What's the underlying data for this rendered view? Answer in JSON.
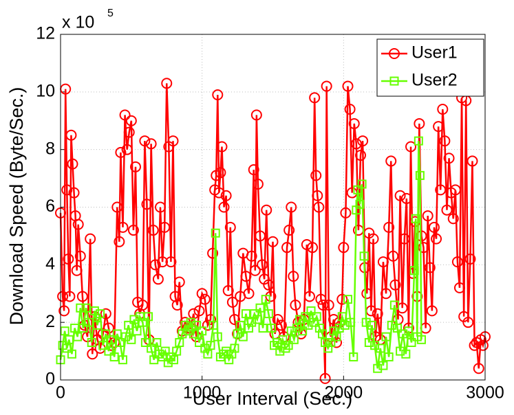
{
  "chart_data": {
    "type": "line",
    "xlabel": "User Interval (Sec.)",
    "ylabel": "Download Speed (Byte/Sec.)",
    "y_multiplier": {
      "base": "x 10",
      "exponent": "5"
    },
    "xlim": [
      0,
      3000
    ],
    "xticks": [
      0,
      1000,
      2000,
      3000
    ],
    "ylim": [
      0,
      12
    ],
    "yticks": [
      0,
      2,
      4,
      6,
      8,
      10,
      12
    ],
    "grid": true,
    "legend": "top-right",
    "series": [
      {
        "name": "User1",
        "color": "#ff0000",
        "marker": "circle",
        "x": [
          0,
          15,
          25,
          35,
          45,
          55,
          65,
          75,
          85,
          95,
          105,
          115,
          125,
          140,
          155,
          170,
          190,
          210,
          225,
          240,
          260,
          280,
          300,
          320,
          340,
          360,
          380,
          400,
          415,
          425,
          440,
          455,
          470,
          485,
          500,
          515,
          530,
          545,
          560,
          580,
          595,
          610,
          625,
          640,
          655,
          670,
          690,
          705,
          720,
          735,
          750,
          765,
          780,
          795,
          810,
          825,
          840,
          860,
          880,
          900,
          920,
          940,
          960,
          980,
          1000,
          1020,
          1040,
          1060,
          1075,
          1090,
          1100,
          1110,
          1120,
          1130,
          1140,
          1155,
          1170,
          1185,
          1200,
          1215,
          1230,
          1250,
          1270,
          1290,
          1310,
          1330,
          1350,
          1365,
          1375,
          1385,
          1395,
          1410,
          1425,
          1440,
          1455,
          1470,
          1485,
          1500,
          1515,
          1535,
          1560,
          1580,
          1600,
          1615,
          1630,
          1645,
          1660,
          1680,
          1700,
          1720,
          1740,
          1760,
          1780,
          1795,
          1805,
          1815,
          1825,
          1840,
          1855,
          1870,
          1880,
          1895,
          1910,
          1930,
          1950,
          1970,
          1990,
          2000,
          2015,
          2030,
          2045,
          2060,
          2075,
          2090,
          2105,
          2120,
          2135,
          2150,
          2165,
          2180,
          2195,
          2210,
          2225,
          2240,
          2260,
          2280,
          2300,
          2320,
          2335,
          2350,
          2365,
          2385,
          2400,
          2415,
          2430,
          2445,
          2460,
          2475,
          2490,
          2505,
          2520,
          2535,
          2550,
          2565,
          2580,
          2595,
          2610,
          2625,
          2640,
          2655,
          2670,
          2685,
          2700,
          2715,
          2730,
          2745,
          2760,
          2775,
          2790,
          2805,
          2820,
          2835,
          2850,
          2865,
          2880,
          2895,
          2910,
          2925,
          2940,
          2955,
          2970,
          2985,
          3000
        ],
        "values": [
          5.8,
          2.9,
          2.4,
          10.1,
          6.6,
          4.2,
          2.9,
          8.5,
          7.5,
          6.5,
          5.7,
          3.8,
          5.4,
          4.3,
          2.9,
          1.9,
          1.5,
          4.9,
          0.9,
          2.2,
          1.4,
          1.1,
          1.6,
          2.3,
          1.8,
          1.2,
          1.3,
          6.0,
          4.8,
          7.9,
          5.3,
          9.2,
          8.0,
          8.6,
          9.0,
          5.2,
          7.4,
          2.7,
          2.3,
          2.6,
          8.3,
          6.1,
          1.4,
          8.2,
          5.2,
          4.0,
          3.5,
          6.0,
          4.1,
          5.3,
          10.3,
          8.1,
          4.1,
          8.3,
          2.9,
          2.6,
          3.4,
          1.7,
          2.0,
          1.8,
          1.8,
          2.3,
          1.5,
          2.4,
          3.0,
          2.8,
          1.9,
          2.1,
          4.4,
          6.6,
          7.1,
          9.9,
          6.5,
          7.2,
          8.1,
          6.0,
          6.4,
          3.1,
          5.3,
          2.7,
          2.1,
          1.6,
          2.9,
          4.4,
          3.6,
          3.0,
          4.3,
          7.3,
          3.8,
          9.2,
          6.8,
          5.0,
          4.0,
          3.5,
          5.9,
          3.3,
          2.9,
          4.8,
          1.6,
          2.1,
          1.9,
          1.5,
          4.6,
          5.2,
          6.0,
          3.6,
          2.6,
          2.0,
          1.6,
          2.1,
          4.7,
          2.9,
          4.6,
          9.8,
          7.1,
          6.4,
          6.0,
          2.8,
          2.6,
          0.05,
          10.2,
          2.6,
          1.5,
          2.1,
          1.3,
          2.0,
          2.8,
          4.6,
          5.8,
          10.2,
          9.4,
          6.5,
          8.9,
          8.2,
          5.2,
          7.8,
          8.3,
          3.9,
          3.0,
          5.1,
          2.4,
          4.9,
          1.5,
          2.3,
          1.4,
          4.1,
          3.0,
          5.3,
          7.6,
          4.3,
          3.3,
          2.1,
          6.4,
          2.5,
          4.9,
          6.3,
          1.8,
          8.1,
          3.7,
          5.5,
          2.9,
          8.9,
          5.0,
          4.6,
          1.8,
          5.7,
          3.9,
          2.4,
          5.3,
          4.9,
          8.8,
          6.6,
          9.4,
          8.3,
          5.9,
          7.7,
          6.5,
          5.6,
          6.6,
          4.1,
          3.2,
          9.8,
          2.2,
          9.7,
          2.0,
          4.2,
          7.6,
          1.2,
          1.3,
          0.4,
          1.4,
          1.2,
          1.5
        ]
      },
      {
        "name": "User2",
        "color": "#66ff00",
        "marker": "square",
        "x": [
          0,
          15,
          30,
          45,
          60,
          80,
          100,
          120,
          140,
          160,
          180,
          200,
          220,
          240,
          260,
          280,
          300,
          320,
          340,
          360,
          380,
          400,
          420,
          440,
          460,
          480,
          500,
          520,
          540,
          560,
          580,
          600,
          620,
          640,
          660,
          680,
          700,
          720,
          740,
          760,
          780,
          800,
          820,
          840,
          860,
          880,
          900,
          920,
          940,
          960,
          980,
          1000,
          1020,
          1040,
          1060,
          1080,
          1095,
          1110,
          1130,
          1150,
          1170,
          1190,
          1210,
          1230,
          1250,
          1270,
          1290,
          1310,
          1330,
          1350,
          1370,
          1390,
          1410,
          1430,
          1450,
          1470,
          1490,
          1510,
          1530,
          1550,
          1570,
          1590,
          1610,
          1630,
          1650,
          1670,
          1690,
          1710,
          1730,
          1750,
          1770,
          1790,
          1810,
          1830,
          1850,
          1870,
          1890,
          1910,
          1930,
          1950,
          1970,
          1990,
          2010,
          2030,
          2050,
          2070,
          2090,
          2100,
          2115,
          2130,
          2145,
          2160,
          2180,
          2200,
          2220,
          2240,
          2260,
          2280,
          2300,
          2320,
          2340,
          2360,
          2380,
          2400,
          2420,
          2440,
          2460,
          2480,
          2500,
          2510,
          2520,
          2530,
          2540,
          2550
        ],
        "values": [
          0.7,
          1.2,
          1.7,
          1.1,
          1.4,
          0.9,
          1.8,
          1.5,
          2.5,
          1.8,
          2.5,
          2.0,
          1.3,
          2.4,
          1.9,
          2.3,
          1.2,
          1.6,
          1.0,
          1.4,
          0.8,
          1.6,
          1.3,
          0.7,
          1.5,
          1.9,
          1.4,
          2.1,
          1.7,
          2.2,
          2.0,
          1.3,
          2.2,
          1.1,
          0.7,
          1.3,
          0.9,
          0.8,
          1.0,
          0.6,
          0.8,
          0.7,
          1.0,
          1.3,
          1.6,
          1.9,
          1.7,
          2.0,
          1.6,
          1.9,
          1.3,
          1.7,
          1.1,
          0.9,
          1.2,
          1.9,
          5.1,
          1.5,
          0.8,
          0.9,
          1.0,
          0.7,
          0.9,
          1.1,
          1.6,
          1.9,
          1.5,
          2.3,
          1.8,
          2.0,
          2.3,
          2.1,
          2.5,
          1.8,
          2.8,
          2.3,
          1.8,
          1.2,
          1.3,
          1.0,
          1.4,
          1.1,
          1.2,
          1.7,
          1.4,
          1.8,
          2.1,
          1.7,
          2.2,
          1.9,
          2.4,
          2.0,
          2.2,
          1.8,
          1.6,
          1.3,
          1.1,
          1.3,
          1.7,
          1.5,
          1.8,
          2.2,
          1.9,
          2.8,
          2.0,
          0.8,
          5.9,
          6.6,
          6.1,
          6.8,
          4.3,
          2.0,
          1.3,
          1.9,
          1.2,
          0.4,
          1.1,
          0.5,
          1.5,
          0.8,
          1.9,
          2.6,
          1.8,
          1.0,
          1.6,
          0.9,
          1.7,
          1.3,
          3.8,
          5.6,
          1.5,
          8.3,
          7.1,
          1.4
        ]
      }
    ]
  }
}
